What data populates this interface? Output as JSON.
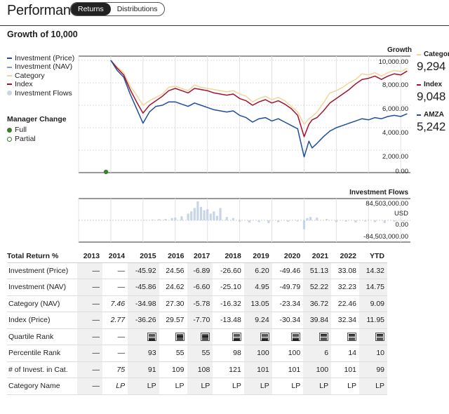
{
  "header": {
    "title": "Performance",
    "tabs": [
      {
        "label": "Returns",
        "active": true
      },
      {
        "label": "Distributions",
        "active": false
      }
    ]
  },
  "growth": {
    "title": "Growth of 10,000",
    "axis_title": "Growth",
    "legend": [
      "Investment (Price)",
      "Investment (NAV)",
      "Category",
      "Index",
      "Investment Flows"
    ],
    "legend_colors": [
      "#1f4e9c",
      "#7ba0d0",
      "#f3d49a",
      "#a3122f",
      "#c8d5e6"
    ],
    "manager_change": {
      "title": "Manager Change",
      "full": "Full",
      "partial": "Partial"
    },
    "series_labels": [
      {
        "name": "Category",
        "value": "9,294",
        "color": "#f3d49a"
      },
      {
        "name": "Index",
        "value": "9,048",
        "color": "#a3122f"
      },
      {
        "name": "AMZA",
        "value": "5,242",
        "color": "#1f4e9c"
      }
    ],
    "y_ticks": [
      "10,000.00",
      "8,000.00",
      "6,000.00",
      "4,000.00",
      "2,000.00",
      "0.00"
    ],
    "flows_title": "Investment Flows",
    "flows_ticks": [
      "84,503,000.00",
      "USD",
      "0.00",
      "-84,503,000.00"
    ]
  },
  "chart_data": [
    {
      "type": "line",
      "title": "Growth of 10,000",
      "ylabel": "Growth",
      "ylim": [
        0,
        10000
      ],
      "x": [
        2014.0,
        2014.2,
        2014.4,
        2014.6,
        2014.8,
        2015.0,
        2015.2,
        2015.4,
        2015.6,
        2015.8,
        2016.0,
        2016.2,
        2016.4,
        2016.6,
        2016.8,
        2017.0,
        2017.2,
        2017.4,
        2017.6,
        2017.8,
        2018.0,
        2018.2,
        2018.4,
        2018.6,
        2018.8,
        2019.0,
        2019.2,
        2019.4,
        2019.6,
        2019.8,
        2020.0,
        2020.15,
        2020.25,
        2020.4,
        2020.6,
        2020.8,
        2021.0,
        2021.2,
        2021.4,
        2021.6,
        2021.8,
        2022.0,
        2022.2,
        2022.4,
        2022.6,
        2022.8,
        2023.0,
        2023.2
      ],
      "series": [
        {
          "name": "Category",
          "values": [
            10000,
            9400,
            8900,
            7700,
            6900,
            6000,
            6400,
            6700,
            7000,
            7600,
            7700,
            7500,
            7300,
            7800,
            7600,
            7500,
            7400,
            7300,
            7200,
            7300,
            7000,
            6800,
            6300,
            6600,
            6800,
            6500,
            6700,
            6400,
            5900,
            5400,
            4300,
            4800,
            5000,
            5400,
            6200,
            7100,
            7300,
            7600,
            8000,
            8300,
            8800,
            8700,
            8900,
            8600,
            8900,
            9100,
            9000,
            9294
          ]
        },
        {
          "name": "Index",
          "values": [
            10000,
            9300,
            8700,
            7400,
            6300,
            5300,
            6000,
            6400,
            6800,
            7300,
            7500,
            7300,
            7100,
            7500,
            7400,
            7300,
            7100,
            7000,
            6900,
            7000,
            6600,
            6400,
            6000,
            6300,
            6500,
            6200,
            6400,
            6100,
            5700,
            5100,
            3200,
            4300,
            4700,
            4900,
            5500,
            6200,
            6600,
            7000,
            7400,
            7900,
            8300,
            8400,
            8600,
            8300,
            8600,
            8800,
            8700,
            9048
          ]
        },
        {
          "name": "AMZA",
          "values": [
            10000,
            9100,
            8500,
            7000,
            5700,
            4400,
            5400,
            5900,
            6000,
            6300,
            6300,
            6100,
            5900,
            6200,
            6000,
            5800,
            5600,
            5500,
            5400,
            5500,
            5100,
            4900,
            4500,
            4800,
            4900,
            4600,
            4800,
            4500,
            4200,
            3900,
            1400,
            2800,
            2200,
            2600,
            3200,
            3700,
            4000,
            4200,
            4400,
            4600,
            4800,
            4700,
            4900,
            4800,
            5000,
            5100,
            5000,
            5242
          ]
        }
      ]
    },
    {
      "type": "bar",
      "title": "Investment Flows",
      "ylabel": "USD",
      "ylim": [
        -84503000,
        84503000
      ],
      "categories": [
        "2015.1",
        "2015.3",
        "2015.5",
        "2015.7",
        "2015.9",
        "2016.0",
        "2016.2",
        "2016.4",
        "2016.5",
        "2016.6",
        "2016.7",
        "2016.8",
        "2016.9",
        "2017.0",
        "2017.1",
        "2017.2",
        "2017.3",
        "2017.4",
        "2017.6",
        "2017.8",
        "2018.0",
        "2018.3",
        "2018.6",
        "2018.9",
        "2019.2",
        "2019.5",
        "2019.8",
        "2020.0",
        "2020.1",
        "2020.2",
        "2020.4",
        "2020.7",
        "2021.0",
        "2021.3",
        "2021.6",
        "2021.9",
        "2022.2",
        "2022.5",
        "2022.8",
        "2023.1"
      ],
      "values": [
        2000000,
        3000000,
        5000000,
        6000000,
        10000000,
        12000000,
        18000000,
        30000000,
        40000000,
        55000000,
        84503000,
        60000000,
        45000000,
        50000000,
        30000000,
        40000000,
        20000000,
        55000000,
        15000000,
        10000000,
        -6000000,
        -10000000,
        -8000000,
        -12000000,
        -8000000,
        -6000000,
        -5000000,
        -40000000,
        10000000,
        15000000,
        12000000,
        6000000,
        -8000000,
        -6000000,
        -10000000,
        -5000000,
        -8000000,
        -12000000,
        -6000000,
        -4000000
      ]
    }
  ],
  "returns_table": {
    "headers": [
      "Total Return %",
      "2013",
      "2014",
      "2015",
      "2016",
      "2017",
      "2018",
      "2019",
      "2020",
      "2021",
      "2022",
      "YTD"
    ],
    "rows": [
      {
        "label": "Investment (Price)",
        "values": [
          "—",
          "—",
          "-45.92",
          "24.56",
          "-6.89",
          "-26.60",
          "6.20",
          "-49.46",
          "51.13",
          "33.08",
          "14.32"
        ]
      },
      {
        "label": "Investment (NAV)",
        "values": [
          "—",
          "—",
          "-45.86",
          "24.62",
          "-6.60",
          "-25.10",
          "4.95",
          "-49.79",
          "52.22",
          "32.23",
          "14.75"
        ]
      },
      {
        "label": "Category (NAV)",
        "values": [
          "—",
          "7.46",
          "-34.98",
          "27.30",
          "-5.78",
          "-16.32",
          "13.05",
          "-23.34",
          "36.72",
          "22.46",
          "9.09"
        ]
      },
      {
        "label": "Index (Price)",
        "values": [
          "—",
          "2.77",
          "-36.26",
          "29.57",
          "-7.70",
          "-13.48",
          "9.24",
          "-30.34",
          "39.84",
          "32.34",
          "11.95"
        ]
      },
      {
        "label": "Quartile Rank",
        "values": [
          "—",
          "—",
          "Q",
          "Q",
          "Q",
          "Q",
          "Q",
          "Q",
          "Q",
          "Q",
          "Q"
        ]
      },
      {
        "label": "Percentile Rank",
        "values": [
          "—",
          "—",
          "93",
          "55",
          "55",
          "98",
          "100",
          "100",
          "6",
          "14",
          "10"
        ]
      },
      {
        "label": "# of Invest. in Cat.",
        "values": [
          "—",
          "75",
          "91",
          "109",
          "108",
          "121",
          "101",
          "101",
          "100",
          "101",
          "99"
        ]
      },
      {
        "label": "Category Name",
        "values": [
          "—",
          "LP",
          "LP",
          "LP",
          "LP",
          "LP",
          "LP",
          "LP",
          "LP",
          "LP",
          "LP"
        ]
      }
    ],
    "quartiles": [
      null,
      null,
      4,
      2,
      2,
      4,
      4,
      4,
      1,
      1,
      1
    ]
  }
}
